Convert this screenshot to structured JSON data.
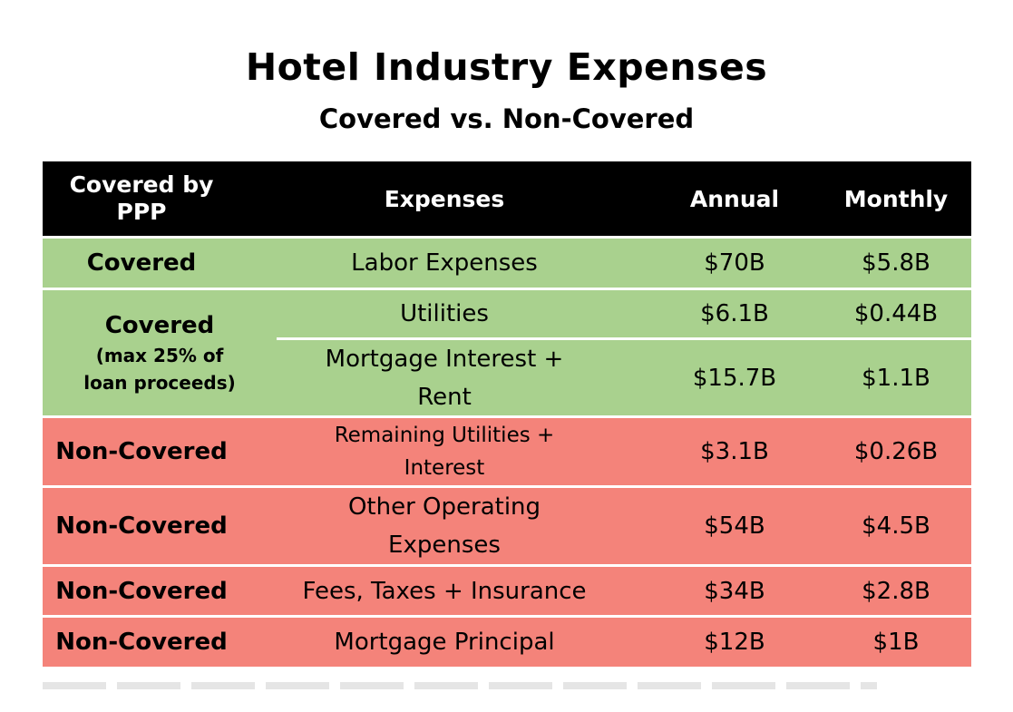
{
  "title": "Hotel Industry Expenses",
  "subtitle": "Covered vs. Non-Covered",
  "colors": {
    "header": "#000000",
    "covered": "#a9d18e",
    "non_covered": "#f4837a"
  },
  "chart_data": {
    "type": "table",
    "title": "Hotel Industry Expenses",
    "subtitle": "Covered vs. Non-Covered",
    "columns": [
      "Covered by PPP",
      "Expenses",
      "Annual",
      "Monthly"
    ],
    "groups": [
      {
        "label": "Covered",
        "note": "",
        "rows": [
          {
            "expense": "Labor Expenses",
            "annual": "$70B",
            "monthly": "$5.8B"
          }
        ]
      },
      {
        "label": "Covered",
        "note": "(max 25% of loan proceeds)",
        "rows": [
          {
            "expense": "Utilities",
            "annual": "$6.1B",
            "monthly": "$0.44B"
          },
          {
            "expense": "Mortgage Interest + Rent",
            "annual": "$15.7B",
            "monthly": "$1.1B"
          }
        ]
      },
      {
        "label": "Non-Covered",
        "note": "",
        "rows": [
          {
            "expense": "Remaining Utilities + Interest",
            "annual": "$3.1B",
            "monthly": "$0.26B"
          }
        ]
      },
      {
        "label": "Non-Covered",
        "note": "",
        "rows": [
          {
            "expense": "Other Operating Expenses",
            "annual": "$54B",
            "monthly": "$4.5B"
          }
        ]
      },
      {
        "label": "Non-Covered",
        "note": "",
        "rows": [
          {
            "expense": "Fees, Taxes + Insurance",
            "annual": "$34B",
            "monthly": "$2.8B"
          }
        ]
      },
      {
        "label": "Non-Covered",
        "note": "",
        "rows": [
          {
            "expense": "Mortgage Principal",
            "annual": "$12B",
            "monthly": "$1B"
          }
        ]
      }
    ]
  },
  "display": {
    "header_col1_line1": "Covered by",
    "header_col1_line2": "PPP",
    "g2_note_line1": "(max 25% of",
    "g2_note_line2": "loan proceeds)",
    "mortgage_line1": "Mortgage Interest +",
    "mortgage_line2": "Rent",
    "remaining_line1": "Remaining Utilities +",
    "remaining_line2": "Interest",
    "other_line1": "Other Operating",
    "other_line2": "Expenses"
  }
}
